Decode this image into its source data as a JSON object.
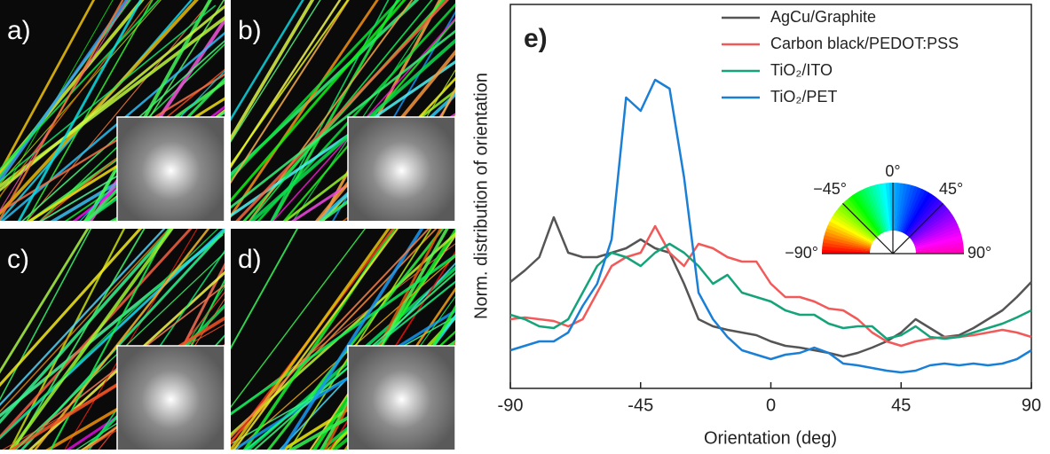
{
  "chart_data": {
    "type": "line",
    "panels": [
      "a)",
      "b)",
      "c)",
      "d)"
    ],
    "label": "e)",
    "x_label": "Orientation (deg)",
    "y_label": "Norm. distribution of orientation",
    "x": [
      -90,
      -85,
      -80,
      -75,
      -70,
      -65,
      -60,
      -55,
      -50,
      -45,
      -40,
      -35,
      -30,
      -25,
      -20,
      -15,
      -10,
      -5,
      0,
      5,
      10,
      15,
      20,
      25,
      30,
      35,
      40,
      45,
      50,
      55,
      60,
      65,
      70,
      75,
      80,
      85,
      90
    ],
    "xlim": [
      -90,
      90
    ],
    "xticks": [
      -90,
      -45,
      0,
      45,
      90
    ],
    "ylim": [
      42,
      475
    ],
    "series": [
      {
        "name": "AgCu/Graphite",
        "color": "#555555",
        "values": [
          162,
          175,
          190,
          235,
          195,
          190,
          190,
          195,
          200,
          210,
          200,
          195,
          160,
          120,
          112,
          108,
          105,
          102,
          95,
          90,
          88,
          85,
          82,
          78,
          82,
          88,
          95,
          105,
          120,
          110,
          100,
          102,
          110,
          120,
          130,
          145,
          162
        ]
      },
      {
        "name": "Carbon black/PEDOT:PSS",
        "color": "#f25a5a",
        "values": [
          120,
          122,
          120,
          118,
          112,
          120,
          150,
          180,
          190,
          195,
          225,
          195,
          180,
          205,
          200,
          190,
          185,
          185,
          160,
          145,
          145,
          140,
          132,
          130,
          120,
          105,
          95,
          90,
          95,
          98,
          100,
          100,
          102,
          105,
          108,
          105,
          100
        ]
      },
      {
        "name": "TiO₂/ITO",
        "color": "#15a37a",
        "values": [
          125,
          120,
          112,
          110,
          120,
          150,
          180,
          195,
          190,
          180,
          195,
          205,
          195,
          180,
          160,
          170,
          150,
          145,
          140,
          130,
          125,
          125,
          115,
          110,
          112,
          112,
          98,
          102,
          112,
          100,
          98,
          100,
          105,
          110,
          115,
          122,
          130
        ]
      },
      {
        "name": "TiO₂/PET",
        "color": "#1a7fd6",
        "values": [
          85,
          90,
          95,
          95,
          105,
          135,
          160,
          210,
          370,
          355,
          390,
          380,
          280,
          150,
          120,
          100,
          85,
          80,
          75,
          80,
          82,
          88,
          82,
          70,
          68,
          65,
          62,
          60,
          62,
          68,
          70,
          68,
          70,
          68,
          70,
          75,
          85
        ]
      }
    ],
    "inset_labels": [
      "0°",
      "−45°",
      "45°",
      "−90°",
      "90°"
    ]
  }
}
